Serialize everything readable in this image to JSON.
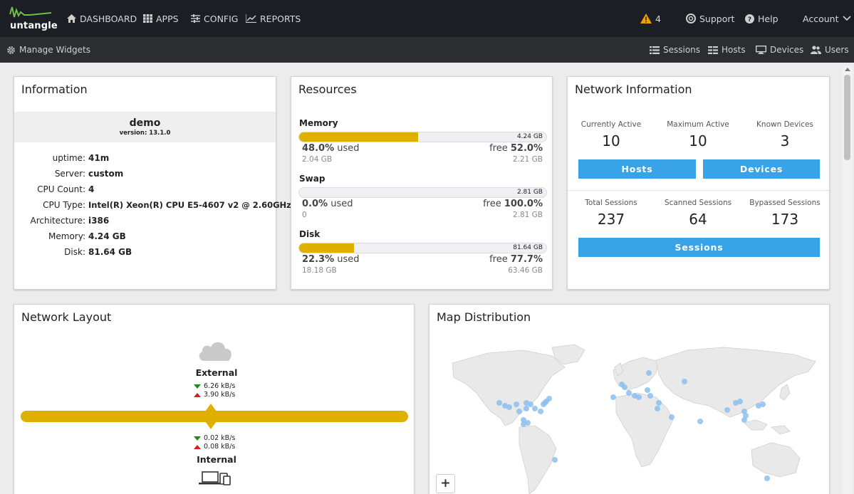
{
  "brand": {
    "name": "untangle"
  },
  "nav": {
    "dashboard": "DASHBOARD",
    "apps": "APPS",
    "config": "CONFIG",
    "reports": "REPORTS",
    "alerts_count": "4",
    "support": "Support",
    "help": "Help",
    "account": "Account"
  },
  "subbar": {
    "manage_widgets": "Manage Widgets",
    "sessions": "Sessions",
    "hosts": "Hosts",
    "devices": "Devices",
    "users": "Users"
  },
  "information": {
    "title": "Information",
    "name": "demo",
    "version": "version: 13.1.0",
    "rows": [
      {
        "label": "uptime:",
        "value": "41m"
      },
      {
        "label": "Server:",
        "value": "custom"
      },
      {
        "label": "CPU Count:",
        "value": "4"
      },
      {
        "label": "CPU Type:",
        "value": "Intel(R) Xeon(R) CPU E5-4607 v2 @ 2.60GHz"
      },
      {
        "label": "Architecture:",
        "value": "i386"
      },
      {
        "label": "Memory:",
        "value": "4.24 GB"
      },
      {
        "label": "Disk:",
        "value": "81.64 GB"
      }
    ]
  },
  "resources": {
    "title": "Resources",
    "items": [
      {
        "label": "Memory",
        "total": "4.24 GB",
        "used_pct": "48.0%",
        "used_word": "used",
        "free_word": "free",
        "free_pct": "52.0%",
        "used_amt": "2.04 GB",
        "free_amt": "2.21 GB",
        "fill": 0.48
      },
      {
        "label": "Swap",
        "total": "2.81 GB",
        "used_pct": "0.0%",
        "used_word": "used",
        "free_word": "free",
        "free_pct": "100.0%",
        "used_amt": "0",
        "free_amt": "2.81 GB",
        "fill": 0.0
      },
      {
        "label": "Disk",
        "total": "81.64 GB",
        "used_pct": "22.3%",
        "used_word": "used",
        "free_word": "free",
        "free_pct": "77.7%",
        "used_amt": "18.18 GB",
        "free_amt": "63.46 GB",
        "fill": 0.223
      }
    ]
  },
  "network_info": {
    "title": "Network Information",
    "currently_active_label": "Currently Active",
    "currently_active": "10",
    "maximum_active_label": "Maximum Active",
    "maximum_active": "10",
    "known_devices_label": "Known Devices",
    "known_devices": "3",
    "hosts_button": "Hosts",
    "devices_button": "Devices",
    "total_sessions_label": "Total Sessions",
    "total_sessions": "237",
    "scanned_sessions_label": "Scanned Sessions",
    "scanned_sessions": "64",
    "bypassed_sessions_label": "Bypassed Sessions",
    "bypassed_sessions": "173",
    "sessions_button": "Sessions"
  },
  "network_layout": {
    "title": "Network Layout",
    "external": "External",
    "ext_down": "6.26 kB/s",
    "ext_up": "3.90 kB/s",
    "int_down": "0.02 kB/s",
    "int_up": "0.08 kB/s",
    "internal": "Internal"
  },
  "map": {
    "title": "Map Distribution",
    "zoom_in": "+"
  },
  "colors": {
    "accent": "#39a3e8",
    "bar": "#e0b000",
    "warning": "#f0a000"
  }
}
